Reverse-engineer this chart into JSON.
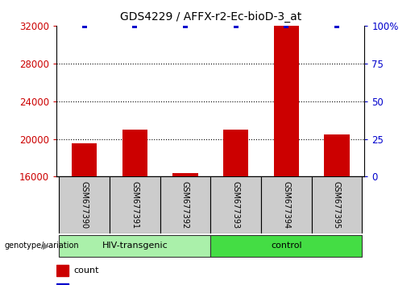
{
  "title": "GDS4229 / AFFX-r2-Ec-bioD-3_at",
  "samples": [
    "GSM677390",
    "GSM677391",
    "GSM677392",
    "GSM677393",
    "GSM677394",
    "GSM677395"
  ],
  "counts": [
    19500,
    21000,
    16400,
    21000,
    32000,
    20500
  ],
  "percentile_ranks": [
    100,
    100,
    100,
    100,
    100,
    100
  ],
  "ylim_left": [
    16000,
    32000
  ],
  "ylim_right": [
    0,
    100
  ],
  "left_ticks": [
    16000,
    20000,
    24000,
    28000,
    32000
  ],
  "right_ticks": [
    0,
    25,
    50,
    75,
    100
  ],
  "right_tick_labels": [
    "0",
    "25",
    "50",
    "75",
    "100%"
  ],
  "groups": [
    {
      "label": "HIV-transgenic",
      "start": 0,
      "end": 3
    },
    {
      "label": "control",
      "start": 3,
      "end": 6
    }
  ],
  "group_colors": [
    "#aaf0aa",
    "#44dd44"
  ],
  "bar_color": "#cc0000",
  "dot_color": "#0000cc",
  "group_label": "genotype/variation",
  "background_color": "#ffffff",
  "dotted_gridlines": [
    20000,
    24000,
    28000
  ],
  "bar_width": 0.5,
  "sample_box_color": "#cccccc",
  "left_tick_color": "#cc0000",
  "right_tick_color": "#0000cc"
}
